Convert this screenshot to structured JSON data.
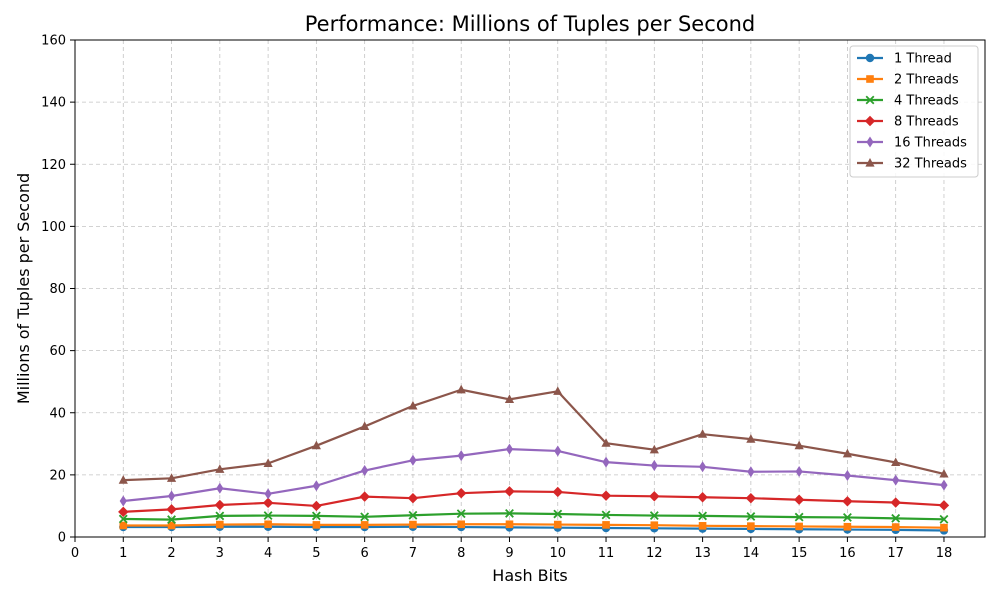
{
  "chart_data": {
    "type": "line",
    "title": "Performance: Millions of Tuples per Second",
    "xlabel": "Hash Bits",
    "ylabel": "Millions of Tuples per Second",
    "xlim": [
      0,
      18.85
    ],
    "ylim": [
      0,
      160
    ],
    "xticks": [
      0,
      1,
      2,
      3,
      4,
      5,
      6,
      7,
      8,
      9,
      10,
      11,
      12,
      13,
      14,
      15,
      16,
      17,
      18
    ],
    "yticks": [
      0,
      20,
      40,
      60,
      80,
      100,
      120,
      140,
      160
    ],
    "grid": true,
    "legend_position": "top-right",
    "x": [
      1,
      2,
      3,
      4,
      5,
      6,
      7,
      8,
      9,
      10,
      11,
      12,
      13,
      14,
      15,
      16,
      17,
      18
    ],
    "series": [
      {
        "name": "1 Thread",
        "color": "#1f77b4",
        "marker": "circle",
        "values": [
          3.2,
          3.2,
          3.3,
          3.3,
          3.2,
          3.2,
          3.3,
          3.2,
          3.1,
          3.0,
          2.9,
          2.8,
          2.7,
          2.6,
          2.5,
          2.4,
          2.3,
          2.1
        ]
      },
      {
        "name": "2 Threads",
        "color": "#ff7f0e",
        "marker": "square",
        "values": [
          3.7,
          3.7,
          4.0,
          4.1,
          3.9,
          3.9,
          4.0,
          4.1,
          4.1,
          4.0,
          3.9,
          3.8,
          3.6,
          3.5,
          3.4,
          3.3,
          3.2,
          3.0
        ]
      },
      {
        "name": "4 Threads",
        "color": "#2ca02c",
        "marker": "x",
        "values": [
          5.8,
          5.6,
          6.8,
          6.9,
          6.8,
          6.5,
          7.0,
          7.5,
          7.6,
          7.4,
          7.1,
          6.9,
          6.8,
          6.6,
          6.4,
          6.3,
          6.0,
          5.7
        ]
      },
      {
        "name": "8 Threads",
        "color": "#d62728",
        "marker": "diamond",
        "values": [
          8.1,
          8.9,
          10.3,
          11.0,
          10.0,
          13.0,
          12.5,
          14.1,
          14.7,
          14.5,
          13.3,
          13.1,
          12.8,
          12.5,
          12.0,
          11.5,
          11.1,
          10.2
        ]
      },
      {
        "name": "16 Threads",
        "color": "#9467bd",
        "marker": "thin_diamond",
        "values": [
          11.6,
          13.2,
          15.7,
          13.9,
          16.5,
          21.4,
          24.7,
          26.2,
          28.3,
          27.7,
          24.1,
          23.0,
          22.6,
          21.0,
          21.1,
          19.8,
          18.3,
          16.7
        ]
      },
      {
        "name": "32 Threads",
        "color": "#8c564b",
        "marker": "triangle",
        "values": [
          18.3,
          18.9,
          21.8,
          23.7,
          29.4,
          35.6,
          42.2,
          47.4,
          44.3,
          46.9,
          30.2,
          28.1,
          33.1,
          31.5,
          29.4,
          26.8,
          24.0,
          20.3
        ]
      }
    ]
  }
}
